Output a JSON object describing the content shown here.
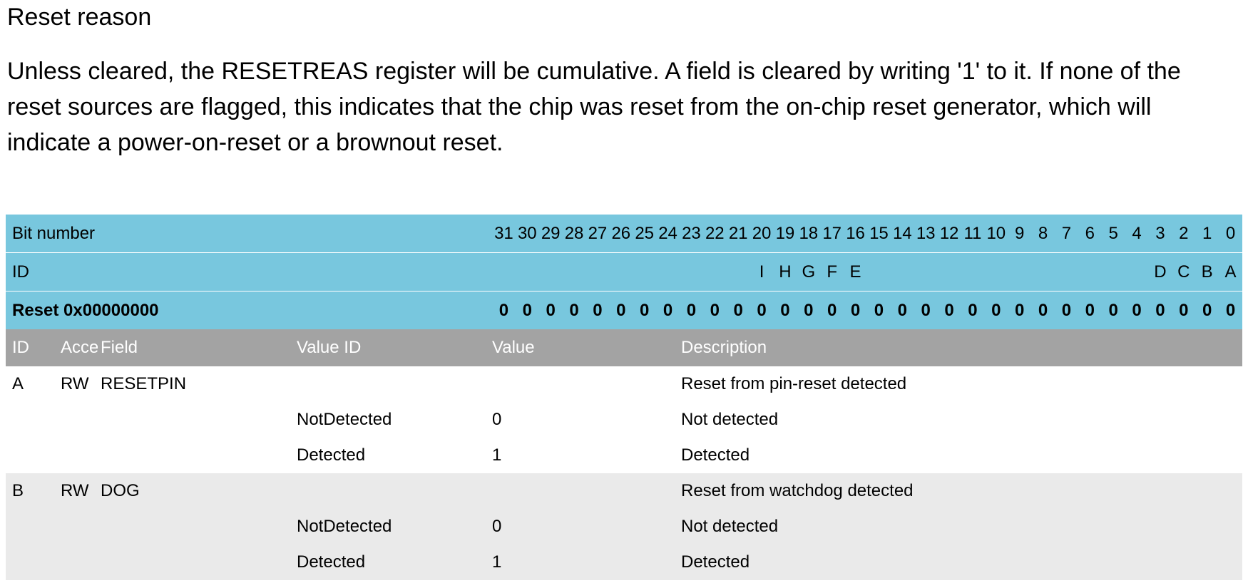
{
  "title": "Reset reason",
  "description": "Unless cleared, the RESETREAS register will be cumulative. A field is cleared by writing '1' to it. If none of the reset sources are flagged, this indicates that the chip was reset from the on-chip reset generator, which will indicate a power-on-reset or a brownout reset.",
  "register": {
    "bit_label": "Bit number",
    "bits": [
      "31",
      "30",
      "29",
      "28",
      "27",
      "26",
      "25",
      "24",
      "23",
      "22",
      "21",
      "20",
      "19",
      "18",
      "17",
      "16",
      "15",
      "14",
      "13",
      "12",
      "11",
      "10",
      "9",
      "8",
      "7",
      "6",
      "5",
      "4",
      "3",
      "2",
      "1",
      "0"
    ],
    "id_label": "ID",
    "ids": [
      "",
      "",
      "",
      "",
      "",
      "",
      "",
      "",
      "",
      "",
      "",
      "I",
      "H",
      "G",
      "F",
      "E",
      "",
      "",
      "",
      "",
      "",
      "",
      "",
      "",
      "",
      "",
      "",
      "",
      "D",
      "C",
      "B",
      "A"
    ],
    "reset_label": "Reset 0x00000000",
    "reset_values": [
      "0",
      "0",
      "0",
      "0",
      "0",
      "0",
      "0",
      "0",
      "0",
      "0",
      "0",
      "0",
      "0",
      "0",
      "0",
      "0",
      "0",
      "0",
      "0",
      "0",
      "0",
      "0",
      "0",
      "0",
      "0",
      "0",
      "0",
      "0",
      "0",
      "0",
      "0",
      "0"
    ]
  },
  "table": {
    "headers": {
      "id": "ID",
      "access": "Acce",
      "field": "Field",
      "value_id": "Value ID",
      "value": "Value",
      "description": "Description"
    },
    "fields": [
      {
        "id": "A",
        "access": "RW",
        "field": "RESETPIN",
        "description": "Reset from pin-reset detected",
        "values": [
          {
            "value_id": "NotDetected",
            "value": "0",
            "description": "Not detected"
          },
          {
            "value_id": "Detected",
            "value": "1",
            "description": "Detected"
          }
        ]
      },
      {
        "id": "B",
        "access": "RW",
        "field": "DOG",
        "description": "Reset from watchdog detected",
        "values": [
          {
            "value_id": "NotDetected",
            "value": "0",
            "description": "Not detected"
          },
          {
            "value_id": "Detected",
            "value": "1",
            "description": "Detected"
          }
        ]
      }
    ]
  }
}
